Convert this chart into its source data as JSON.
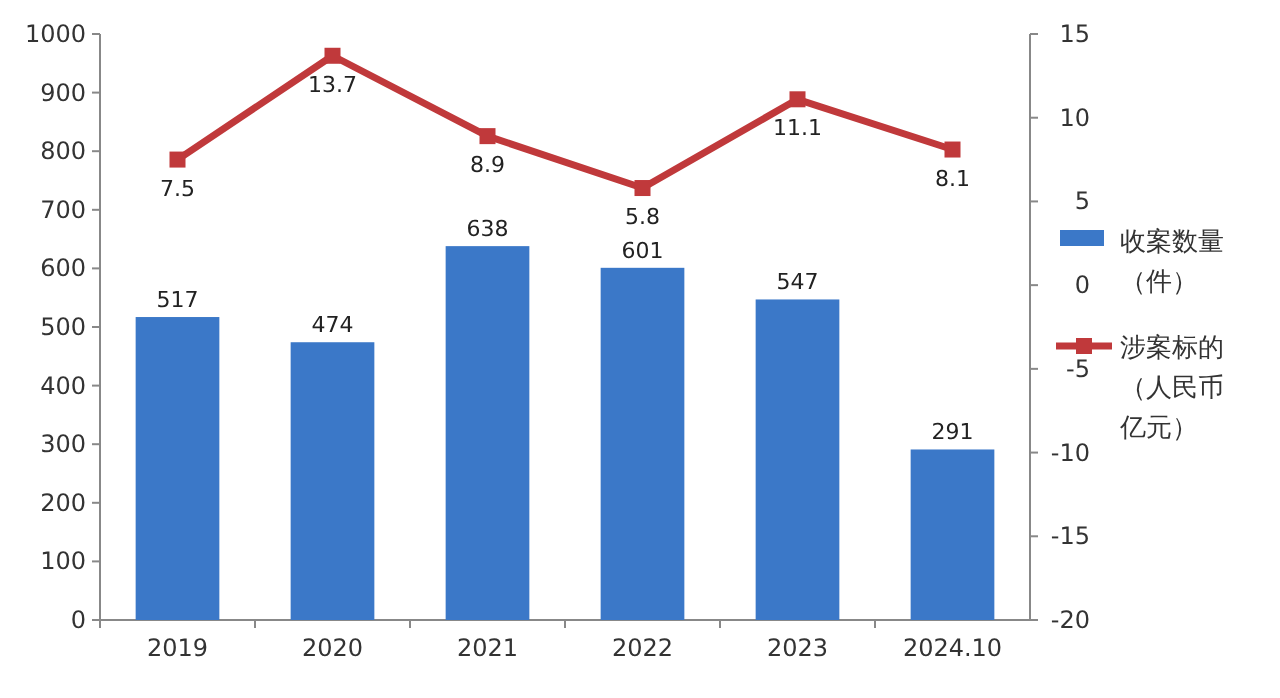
{
  "chart_data": {
    "type": "bar",
    "categories": [
      "2019",
      "2020",
      "2021",
      "2022",
      "2023",
      "2024.10"
    ],
    "series": [
      {
        "name": "收案数量（件）",
        "color": "#3b78c8",
        "values": [
          517,
          474,
          638,
          601,
          547,
          291
        ]
      },
      {
        "name": "涉案标的（人民币亿元）",
        "type": "line",
        "axis": "y2",
        "color": "#c0393b",
        "values": [
          7.5,
          13.7,
          8.9,
          5.8,
          11.1,
          8.1
        ]
      }
    ],
    "ylim": [
      0,
      1000
    ],
    "yticks": [
      0,
      100,
      200,
      300,
      400,
      500,
      600,
      700,
      800,
      900,
      1000
    ],
    "y2lim": [
      -20,
      15
    ],
    "y2ticks": [
      -20,
      -15,
      -10,
      -5,
      0,
      5,
      10,
      15
    ],
    "data_labels": true,
    "legend": "right",
    "marker": "square",
    "line_style": "solid",
    "grid": false
  }
}
